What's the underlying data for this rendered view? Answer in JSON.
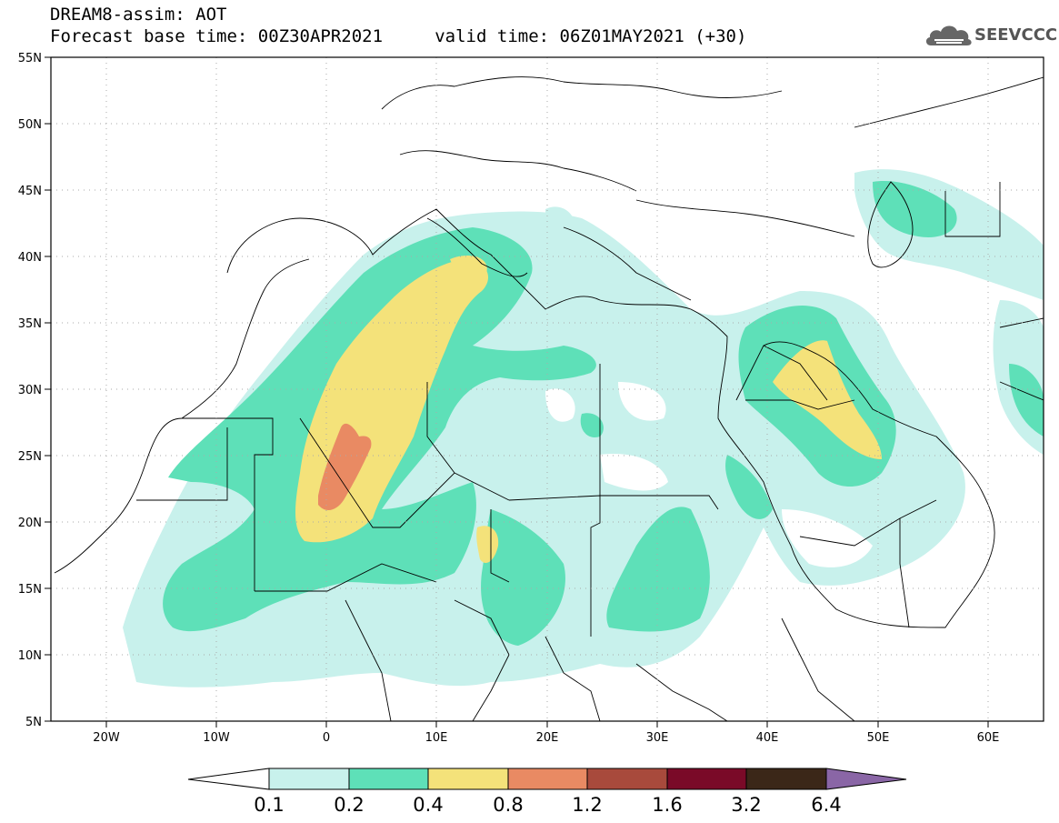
{
  "header": {
    "line1": "DREAM8-assim: AOT",
    "line2": "Forecast base time: 00Z30APR2021     valid time: 06Z01MAY2021 (+30)"
  },
  "logo": {
    "text": "SEEVCCC",
    "icon": "cloud-icon"
  },
  "axes": {
    "lat_labels": [
      "55N",
      "50N",
      "45N",
      "40N",
      "35N",
      "30N",
      "25N",
      "20N",
      "15N",
      "10N",
      "5N"
    ],
    "lon_labels": [
      "20W",
      "10W",
      "0",
      "10E",
      "20E",
      "30E",
      "40E",
      "50E",
      "60E"
    ],
    "lon_range": [
      -25,
      65
    ],
    "lat_range": [
      5,
      55
    ],
    "grid": "dotted"
  },
  "colorbar": {
    "labels": [
      "0.1",
      "0.2",
      "0.4",
      "0.8",
      "1.2",
      "1.6",
      "3.2",
      "6.4"
    ],
    "colors": [
      "#ffffff",
      "#c8f1ec",
      "#5ee0b8",
      "#f4e27a",
      "#e98a63",
      "#a84a3c",
      "#7a0a28",
      "#3b2718",
      "#8a66a6"
    ]
  }
}
